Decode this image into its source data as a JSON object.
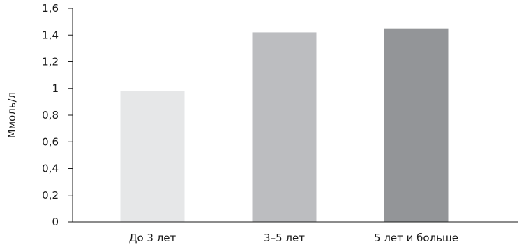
{
  "chart_data": {
    "type": "bar",
    "title": "",
    "xlabel": "",
    "ylabel": "Ммоль/л",
    "categories": [
      "До 3 лет",
      "3–5 лет",
      "5 лет и больше"
    ],
    "values": [
      0.98,
      1.42,
      1.45
    ],
    "colors": [
      "#e6e7e8",
      "#bcbdc0",
      "#939598"
    ],
    "ylim": [
      0,
      1.6
    ],
    "yticks": [
      "0",
      "0,2",
      "0,4",
      "0,6",
      "0,8",
      "1",
      "1,2",
      "1,4",
      "1,6"
    ],
    "grid": false,
    "legend": "none"
  }
}
